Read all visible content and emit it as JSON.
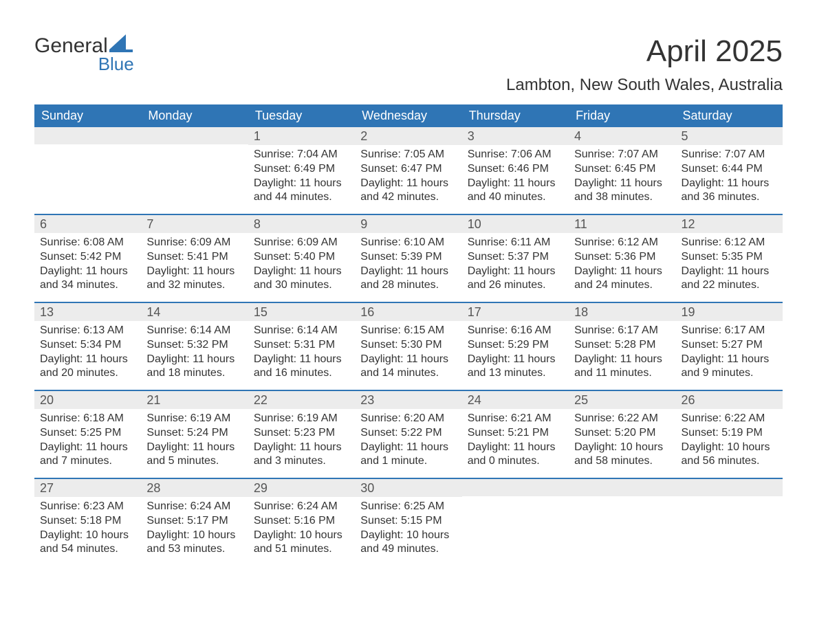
{
  "logo": {
    "text1": "General",
    "text2": "Blue",
    "sail_color": "#2f75b5"
  },
  "title": "April 2025",
  "location": "Lambton, New South Wales, Australia",
  "header_bg": "#2f75b5",
  "header_fg": "#ffffff",
  "daynum_bg": "#ececec",
  "rule_color": "#2f75b5",
  "columns": [
    "Sunday",
    "Monday",
    "Tuesday",
    "Wednesday",
    "Thursday",
    "Friday",
    "Saturday"
  ],
  "weeks": [
    [
      {
        "n": "",
        "lines": []
      },
      {
        "n": "",
        "lines": []
      },
      {
        "n": "1",
        "lines": [
          "Sunrise: 7:04 AM",
          "Sunset: 6:49 PM",
          "Daylight: 11 hours and 44 minutes."
        ]
      },
      {
        "n": "2",
        "lines": [
          "Sunrise: 7:05 AM",
          "Sunset: 6:47 PM",
          "Daylight: 11 hours and 42 minutes."
        ]
      },
      {
        "n": "3",
        "lines": [
          "Sunrise: 7:06 AM",
          "Sunset: 6:46 PM",
          "Daylight: 11 hours and 40 minutes."
        ]
      },
      {
        "n": "4",
        "lines": [
          "Sunrise: 7:07 AM",
          "Sunset: 6:45 PM",
          "Daylight: 11 hours and 38 minutes."
        ]
      },
      {
        "n": "5",
        "lines": [
          "Sunrise: 7:07 AM",
          "Sunset: 6:44 PM",
          "Daylight: 11 hours and 36 minutes."
        ]
      }
    ],
    [
      {
        "n": "6",
        "lines": [
          "Sunrise: 6:08 AM",
          "Sunset: 5:42 PM",
          "Daylight: 11 hours and 34 minutes."
        ]
      },
      {
        "n": "7",
        "lines": [
          "Sunrise: 6:09 AM",
          "Sunset: 5:41 PM",
          "Daylight: 11 hours and 32 minutes."
        ]
      },
      {
        "n": "8",
        "lines": [
          "Sunrise: 6:09 AM",
          "Sunset: 5:40 PM",
          "Daylight: 11 hours and 30 minutes."
        ]
      },
      {
        "n": "9",
        "lines": [
          "Sunrise: 6:10 AM",
          "Sunset: 5:39 PM",
          "Daylight: 11 hours and 28 minutes."
        ]
      },
      {
        "n": "10",
        "lines": [
          "Sunrise: 6:11 AM",
          "Sunset: 5:37 PM",
          "Daylight: 11 hours and 26 minutes."
        ]
      },
      {
        "n": "11",
        "lines": [
          "Sunrise: 6:12 AM",
          "Sunset: 5:36 PM",
          "Daylight: 11 hours and 24 minutes."
        ]
      },
      {
        "n": "12",
        "lines": [
          "Sunrise: 6:12 AM",
          "Sunset: 5:35 PM",
          "Daylight: 11 hours and 22 minutes."
        ]
      }
    ],
    [
      {
        "n": "13",
        "lines": [
          "Sunrise: 6:13 AM",
          "Sunset: 5:34 PM",
          "Daylight: 11 hours and 20 minutes."
        ]
      },
      {
        "n": "14",
        "lines": [
          "Sunrise: 6:14 AM",
          "Sunset: 5:32 PM",
          "Daylight: 11 hours and 18 minutes."
        ]
      },
      {
        "n": "15",
        "lines": [
          "Sunrise: 6:14 AM",
          "Sunset: 5:31 PM",
          "Daylight: 11 hours and 16 minutes."
        ]
      },
      {
        "n": "16",
        "lines": [
          "Sunrise: 6:15 AM",
          "Sunset: 5:30 PM",
          "Daylight: 11 hours and 14 minutes."
        ]
      },
      {
        "n": "17",
        "lines": [
          "Sunrise: 6:16 AM",
          "Sunset: 5:29 PM",
          "Daylight: 11 hours and 13 minutes."
        ]
      },
      {
        "n": "18",
        "lines": [
          "Sunrise: 6:17 AM",
          "Sunset: 5:28 PM",
          "Daylight: 11 hours and 11 minutes."
        ]
      },
      {
        "n": "19",
        "lines": [
          "Sunrise: 6:17 AM",
          "Sunset: 5:27 PM",
          "Daylight: 11 hours and 9 minutes."
        ]
      }
    ],
    [
      {
        "n": "20",
        "lines": [
          "Sunrise: 6:18 AM",
          "Sunset: 5:25 PM",
          "Daylight: 11 hours and 7 minutes."
        ]
      },
      {
        "n": "21",
        "lines": [
          "Sunrise: 6:19 AM",
          "Sunset: 5:24 PM",
          "Daylight: 11 hours and 5 minutes."
        ]
      },
      {
        "n": "22",
        "lines": [
          "Sunrise: 6:19 AM",
          "Sunset: 5:23 PM",
          "Daylight: 11 hours and 3 minutes."
        ]
      },
      {
        "n": "23",
        "lines": [
          "Sunrise: 6:20 AM",
          "Sunset: 5:22 PM",
          "Daylight: 11 hours and 1 minute."
        ]
      },
      {
        "n": "24",
        "lines": [
          "Sunrise: 6:21 AM",
          "Sunset: 5:21 PM",
          "Daylight: 11 hours and 0 minutes."
        ]
      },
      {
        "n": "25",
        "lines": [
          "Sunrise: 6:22 AM",
          "Sunset: 5:20 PM",
          "Daylight: 10 hours and 58 minutes."
        ]
      },
      {
        "n": "26",
        "lines": [
          "Sunrise: 6:22 AM",
          "Sunset: 5:19 PM",
          "Daylight: 10 hours and 56 minutes."
        ]
      }
    ],
    [
      {
        "n": "27",
        "lines": [
          "Sunrise: 6:23 AM",
          "Sunset: 5:18 PM",
          "Daylight: 10 hours and 54 minutes."
        ]
      },
      {
        "n": "28",
        "lines": [
          "Sunrise: 6:24 AM",
          "Sunset: 5:17 PM",
          "Daylight: 10 hours and 53 minutes."
        ]
      },
      {
        "n": "29",
        "lines": [
          "Sunrise: 6:24 AM",
          "Sunset: 5:16 PM",
          "Daylight: 10 hours and 51 minutes."
        ]
      },
      {
        "n": "30",
        "lines": [
          "Sunrise: 6:25 AM",
          "Sunset: 5:15 PM",
          "Daylight: 10 hours and 49 minutes."
        ]
      },
      {
        "n": "",
        "lines": []
      },
      {
        "n": "",
        "lines": []
      },
      {
        "n": "",
        "lines": []
      }
    ]
  ]
}
